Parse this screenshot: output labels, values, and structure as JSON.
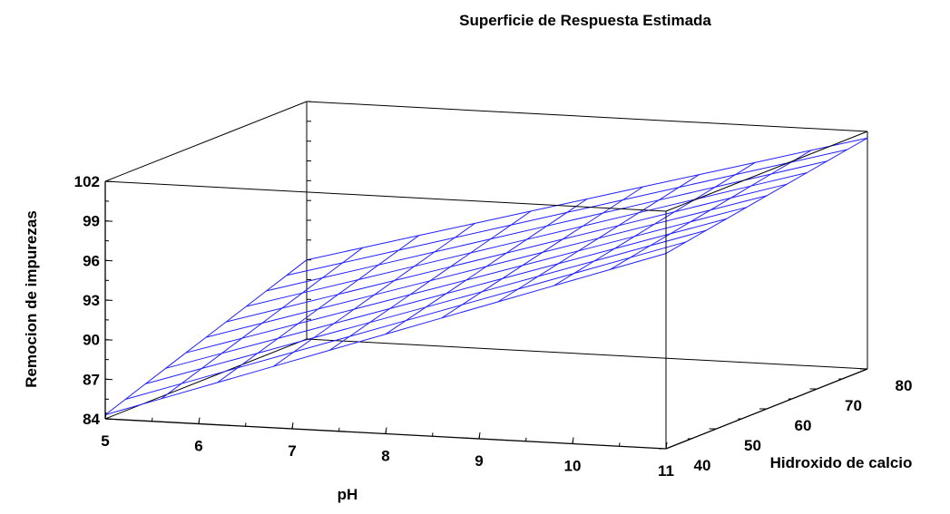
{
  "chart_data": {
    "type": "surface",
    "title": "Superficie de Respuesta Estimada",
    "xlabel": "pH",
    "ylabel": "Hidroxido de calcio",
    "zlabel": "Remocion de impurezas",
    "x_ticks": [
      "5",
      "6",
      "7",
      "8",
      "9",
      "10",
      "11"
    ],
    "y_ticks": [
      "40",
      "50",
      "60",
      "70",
      "80"
    ],
    "z_ticks": [
      "84",
      "87",
      "90",
      "93",
      "96",
      "99",
      "102"
    ],
    "xlim": [
      5,
      11
    ],
    "ylim": [
      40,
      80
    ],
    "zlim": [
      84,
      102
    ],
    "grid_x": [
      5,
      5.6,
      6.2,
      6.8,
      7.4,
      8,
      8.6,
      9.2,
      9.8,
      10.4,
      11
    ],
    "grid_y": [
      40,
      44,
      48,
      52,
      56,
      60,
      64,
      68,
      72,
      76,
      80
    ],
    "corner_values": {
      "x5_y40": 84.3,
      "x11_y40": 98.8,
      "x5_y80": 90.0,
      "x11_y80": 101.5
    },
    "surface_color": "#2020ff",
    "box_color": "#000000"
  }
}
